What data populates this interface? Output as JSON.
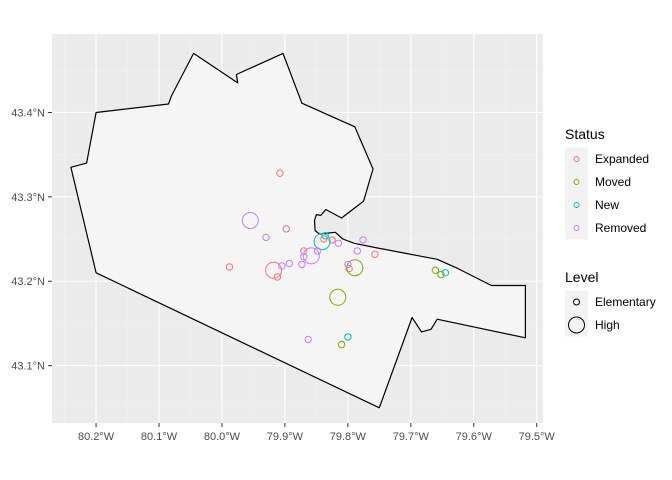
{
  "chart_data": {
    "type": "scatter",
    "subtype": "map-points",
    "x_range": [
      -80.27,
      -79.49
    ],
    "y_range": [
      43.032,
      43.493
    ],
    "x_ticks": [
      {
        "value": -80.2,
        "label": "80.2°W"
      },
      {
        "value": -80.1,
        "label": "80.1°W"
      },
      {
        "value": -80.0,
        "label": "80.0°W"
      },
      {
        "value": -79.9,
        "label": "79.9°W"
      },
      {
        "value": -79.8,
        "label": "79.8°W"
      },
      {
        "value": -79.7,
        "label": "79.7°W"
      },
      {
        "value": -79.6,
        "label": "79.6°W"
      },
      {
        "value": -79.5,
        "label": "79.5°W"
      }
    ],
    "y_ticks": [
      {
        "value": 43.1,
        "label": "43.1°N"
      },
      {
        "value": 43.2,
        "label": "43.2°N"
      },
      {
        "value": 43.3,
        "label": "43.3°N"
      },
      {
        "value": 43.4,
        "label": "43.4°N"
      }
    ],
    "grid": true,
    "legend_position": "right",
    "boundary": [
      [
        -80.045,
        43.47
      ],
      [
        -79.975,
        43.435
      ],
      [
        -79.977,
        43.445
      ],
      [
        -79.903,
        43.47
      ],
      [
        -79.873,
        43.411
      ],
      [
        -79.789,
        43.383
      ],
      [
        -79.76,
        43.333
      ],
      [
        -79.775,
        43.295
      ],
      [
        -79.81,
        43.275
      ],
      [
        -79.835,
        43.285
      ],
      [
        -79.843,
        43.278
      ],
      [
        -79.85,
        43.279
      ],
      [
        -79.853,
        43.272
      ],
      [
        -79.852,
        43.26
      ],
      [
        -79.845,
        43.256
      ],
      [
        -79.82,
        43.258
      ],
      [
        -79.808,
        43.25
      ],
      [
        -79.79,
        43.245
      ],
      [
        -79.757,
        43.24
      ],
      [
        -79.708,
        43.233
      ],
      [
        -79.658,
        43.226
      ],
      [
        -79.625,
        43.215
      ],
      [
        -79.572,
        43.195
      ],
      [
        -79.518,
        43.195
      ],
      [
        -79.518,
        43.133
      ],
      [
        -79.658,
        43.155
      ],
      [
        -79.668,
        43.143
      ],
      [
        -79.683,
        43.14
      ],
      [
        -79.698,
        43.157
      ],
      [
        -79.75,
        43.05
      ],
      [
        -80.2,
        43.21
      ],
      [
        -80.24,
        43.335
      ],
      [
        -80.215,
        43.34
      ],
      [
        -80.2,
        43.4
      ],
      [
        -80.085,
        43.41
      ],
      [
        -80.08,
        43.42
      ]
    ],
    "series": [
      {
        "name": "Expanded",
        "color": "#F8766D",
        "points": [
          {
            "x": -79.908,
            "y": 43.328,
            "level": "Elementary"
          },
          {
            "x": -79.898,
            "y": 43.262,
            "level": "Elementary"
          },
          {
            "x": -79.988,
            "y": 43.217,
            "level": "Elementary"
          },
          {
            "x": -79.918,
            "y": 43.213,
            "level": "High"
          },
          {
            "x": -79.912,
            "y": 43.205,
            "level": "Elementary"
          },
          {
            "x": -79.87,
            "y": 43.236,
            "level": "Elementary"
          },
          {
            "x": -79.838,
            "y": 43.25,
            "level": "Elementary"
          },
          {
            "x": -79.825,
            "y": 43.249,
            "level": "Elementary"
          },
          {
            "x": -79.757,
            "y": 43.232,
            "level": "Elementary"
          },
          {
            "x": -79.798,
            "y": 43.215,
            "level": "Elementary"
          }
        ]
      },
      {
        "name": "Moved",
        "color": "#7CAE00",
        "points": [
          {
            "x": -79.816,
            "y": 43.181,
            "level": "High"
          },
          {
            "x": -79.789,
            "y": 43.216,
            "level": "High"
          },
          {
            "x": -79.81,
            "y": 43.125,
            "level": "Elementary"
          },
          {
            "x": -79.661,
            "y": 43.213,
            "level": "Elementary"
          },
          {
            "x": -79.652,
            "y": 43.208,
            "level": "Elementary"
          }
        ]
      },
      {
        "name": "New",
        "color": "#00BFC4",
        "points": [
          {
            "x": -79.841,
            "y": 43.247,
            "level": "High"
          },
          {
            "x": -79.836,
            "y": 43.254,
            "level": "Elementary"
          },
          {
            "x": -79.8,
            "y": 43.134,
            "level": "Elementary"
          },
          {
            "x": -79.645,
            "y": 43.21,
            "level": "Elementary"
          }
        ]
      },
      {
        "name": "Removed",
        "color": "#C77CFF",
        "points": [
          {
            "x": -79.955,
            "y": 43.272,
            "level": "High"
          },
          {
            "x": -79.93,
            "y": 43.252,
            "level": "Elementary"
          },
          {
            "x": -79.905,
            "y": 43.218,
            "level": "Elementary"
          },
          {
            "x": -79.893,
            "y": 43.221,
            "level": "Elementary"
          },
          {
            "x": -79.873,
            "y": 43.22,
            "level": "Elementary"
          },
          {
            "x": -79.87,
            "y": 43.229,
            "level": "Elementary"
          },
          {
            "x": -79.858,
            "y": 43.23,
            "level": "High"
          },
          {
            "x": -79.848,
            "y": 43.236,
            "level": "Elementary"
          },
          {
            "x": -79.815,
            "y": 43.245,
            "level": "Elementary"
          },
          {
            "x": -79.8,
            "y": 43.22,
            "level": "Elementary"
          },
          {
            "x": -79.785,
            "y": 43.236,
            "level": "Elementary"
          },
          {
            "x": -79.776,
            "y": 43.249,
            "level": "Elementary"
          },
          {
            "x": -79.863,
            "y": 43.131,
            "level": "Elementary"
          }
        ]
      }
    ],
    "legends": [
      {
        "title": "Status",
        "entries": [
          {
            "label": "Expanded",
            "color": "#F8766D"
          },
          {
            "label": "Moved",
            "color": "#7CAE00"
          },
          {
            "label": "New",
            "color": "#00BFC4"
          },
          {
            "label": "Removed",
            "color": "#C77CFF"
          }
        ]
      },
      {
        "title": "Level",
        "entries": [
          {
            "label": "Elementary",
            "level": "Elementary"
          },
          {
            "label": "High",
            "level": "High"
          }
        ]
      }
    ]
  },
  "colors": {
    "panel_background": "#EBEBEB",
    "grid_major": "#FFFFFF",
    "grid_minor": "#F2F2F2",
    "region_fill": "#F5F5F5",
    "region_stroke": "#000000",
    "tick_text": "#4D4D4D",
    "legend_key_background": "#F2F2F2"
  }
}
